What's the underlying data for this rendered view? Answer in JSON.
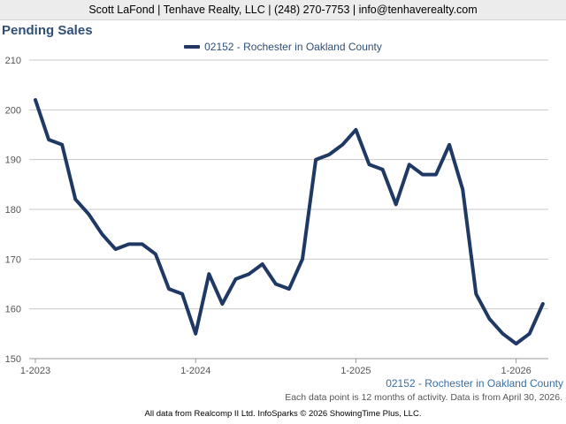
{
  "header": {
    "banner": "Scott LaFond | Tenhave Realty, LLC | (248) 270-7753 | info@tenhaverealty.com"
  },
  "chart_data": {
    "type": "line",
    "title": "Pending Sales",
    "xlabel": "",
    "ylabel": "",
    "ylim": [
      150,
      210
    ],
    "yticks": [
      150,
      160,
      170,
      180,
      190,
      200,
      210
    ],
    "xticks": [
      "1-2023",
      "1-2024",
      "1-2025",
      "1-2026"
    ],
    "x_start": "1-2023",
    "grid": true,
    "legend_position": "top-center",
    "series_color": "#1f3864",
    "series": [
      {
        "name": "02152 - Rochester in Oakland County",
        "values": [
          202,
          194,
          193,
          182,
          179,
          175,
          172,
          173,
          173,
          171,
          164,
          163,
          155,
          167,
          161,
          166,
          167,
          169,
          165,
          164,
          170,
          190,
          191,
          193,
          196,
          189,
          188,
          181,
          189,
          187,
          187,
          193,
          184,
          163,
          158,
          155,
          153,
          155,
          161
        ]
      }
    ],
    "end_label": "02152 - Rochester in Oakland County"
  },
  "footer": {
    "note": "Each data point is 12 months of activity. Data is from April 30, 2026.",
    "credit": "All data from Realcomp II Ltd. InfoSparks © 2026 ShowingTime Plus, LLC."
  }
}
